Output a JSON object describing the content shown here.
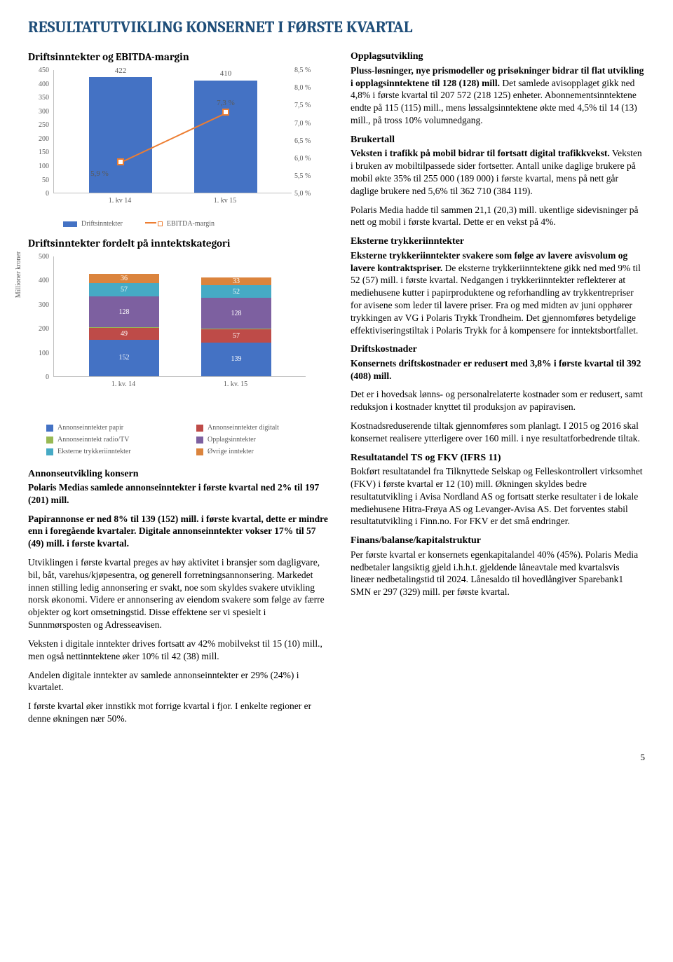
{
  "title": "RESULTATUTVIKLING KONSERNET I FØRSTE KVARTAL",
  "chart1": {
    "title": "Driftsinntekter og EBITDA-margin",
    "y_left": {
      "min": 0,
      "max": 450,
      "step": 50
    },
    "y_right": {
      "min": 5.0,
      "max": 8.5,
      "step": 0.5,
      "suffix": " %"
    },
    "categories": [
      "1. kv 14",
      "1. kv 15"
    ],
    "bar_series": {
      "label": "Driftsinntekter",
      "color": "#4472c4",
      "values": [
        422,
        410
      ]
    },
    "line_series": {
      "label": "EBITDA-margin",
      "color": "#ed7d31",
      "values": [
        5.9,
        7.3
      ],
      "value_labels": [
        "5,9 %",
        "7,3 %"
      ]
    },
    "bar_labels": [
      "422",
      "410"
    ]
  },
  "chart2": {
    "title": "Driftsinntekter fordelt på inntektskategori",
    "y_axis_title": "Millioner kroner",
    "y": {
      "min": 0,
      "max": 500,
      "step": 100
    },
    "categories": [
      "1. kv. 14",
      "1. kv. 15"
    ],
    "series": [
      {
        "label": "Annonseinntekter papir",
        "color": "#4472c4",
        "values": [
          152,
          139
        ]
      },
      {
        "label": "Annonseinntekter digitalt",
        "color": "#be4b48",
        "values": [
          49,
          57
        ]
      },
      {
        "label": "Annonseinntekt radio/TV",
        "color": "#98b954",
        "values": [
          1,
          1
        ]
      },
      {
        "label": "Opplagsinntekter",
        "color": "#7d60a0",
        "values": [
          128,
          128
        ]
      },
      {
        "label": "Eksterne trykkeriinntekter",
        "color": "#46aac5",
        "values": [
          57,
          52
        ]
      },
      {
        "label": "Øvrige inntekter",
        "color": "#db843d",
        "values": [
          36,
          33
        ]
      }
    ]
  },
  "left_body": {
    "h_annons": "Annonseutvikling konsern",
    "p_annons1": "Polaris Medias samlede annonseinntekter i første kvartal ned 2% til 197 (201) mill.",
    "p_papir": "Papirannonse er ned 8% til 139 (152) mill. i første kvartal, dette er mindre enn i foregående kvartaler. Digitale annonseinntekter vokser 17% til 57 (49) mill. i første kvartal.",
    "p_utv": "Utviklingen i første kvartal preges av høy aktivitet i bransjer som dagligvare, bil, båt, varehus/kjøpesentra, og generell forretningsannonsering. Markedet innen stilling ledig annonsering er svakt, noe som skyldes svakere utvikling norsk økonomi. Videre er annonsering av eiendom svakere som følge av færre objekter og kort omsetningstid. Disse effektene ser vi spesielt i Sunnmørsposten og Adresseavisen.",
    "p_vekst": "Veksten i digitale inntekter drives fortsatt av 42% mobilvekst til 15 (10) mill., men også nettinntektene øker 10% til 42 (38) mill.",
    "p_andel": "Andelen digitale inntekter av samlede annonseinntekter er 29% (24%) i kvartalet.",
    "p_innstikk": "I første kvartal øker  innstikk mot forrige kvartal i fjor. I enkelte regioner er denne økningen nær 50%."
  },
  "right_body": {
    "h_opplag": "Opplagsutvikling",
    "p_opplag": "Pluss-løsninger, nye prismodeller og prisøkninger bidrar til flat utvikling i opplagsinntektene til 128 (128) mill. Det samlede avisopplaget gikk ned 4,8% i første kvartal til 207 572 (218 125) enheter. Abonnementsinntektene endte på 115 (115) mill., mens løssalgsinntektene økte med 4,5% til 14 (13) mill., på tross 10% volumnedgang.",
    "h_bruker": "Brukertall",
    "p_bruker1": "Veksten i trafikk på mobil bidrar til fortsatt digital trafikkvekst. Veksten i bruken av mobiltilpassede sider fortsetter. Antall unike daglige brukere på mobil økte 35% til 255 000 (189 000) i første kvartal, mens på nett går daglige brukere ned 5,6% til 362 710 (384 119).",
    "p_bruker2": "Polaris Media hadde til sammen 21,1 (20,3) mill. ukentlige sidevisninger på nett og mobil i første kvartal. Dette er en vekst på 4%.",
    "h_trykk": "Eksterne trykkeriinntekter",
    "p_trykk": "Eksterne trykkeriinntekter svakere som følge av lavere avisvolum og lavere kontraktspriser. De eksterne trykkeriinntektene gikk ned med 9% til 52 (57) mill. i første kvartal. Nedgangen i trykkeriinntekter reflekterer at mediehusene kutter i papirproduktene og reforhandling av trykkentrepriser for avisene som leder til lavere priser. Fra og med midten av juni opphører trykkingen av VG i Polaris Trykk Trondheim. Det gjennomføres betydelige effektiviseringstiltak i Polaris Trykk for å kompensere for inntektsbortfallet.",
    "h_kost": "Driftskostnader",
    "p_kost1": "Konsernets driftskostnader er redusert med 3,8% i første kvartal til 392 (408) mill.",
    "p_kost2": "Det er i hovedsak lønns- og personalrelaterte kostnader som er redusert, samt reduksjon i kostnader knyttet til produksjon av papiravisen.",
    "p_kost3": "Kostnadsreduserende tiltak gjennomføres som planlagt. I 2015 og 2016 skal konsernet realisere ytterligere over 160 mill. i nye resultatforbedrende tiltak.",
    "h_res": "Resultatandel TS og FKV (IFRS 11)",
    "p_res": "Bokført resultatandel fra Tilknyttede Selskap og Felleskontrollert virksomhet (FKV) i første kvartal er 12 (10) mill. Økningen skyldes bedre resultatutvikling i Avisa Nordland AS og fortsatt sterke resultater i de lokale mediehusene Hitra-Frøya AS og Levanger-Avisa AS. Det forventes stabil resultatutvikling i Finn.no. For FKV er det små endringer.",
    "h_fin": "Finans/balanse/kapitalstruktur",
    "p_fin": "Per første kvartal er konsernets egenkapitalandel 40% (45%). Polaris Media nedbetaler langsiktig gjeld i.h.h.t. gjeldende låneavtale med kvartalsvis lineær nedbetalingstid til 2024. Lånesaldo til hovedlångiver Sparebank1 SMN er 297 (329) mill. per første kvartal."
  },
  "page_number": "5"
}
